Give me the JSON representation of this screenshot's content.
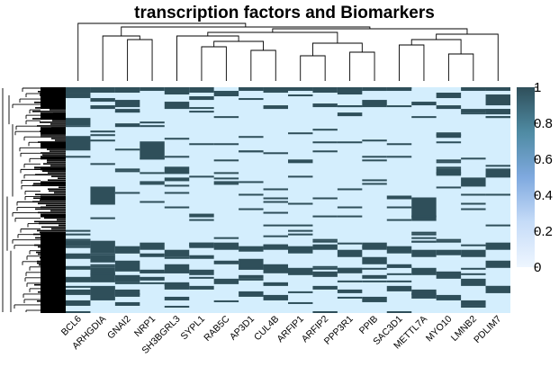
{
  "chart_data": {
    "type": "heatmap",
    "title": "transcription factors and Biomarkers",
    "xlabel": "",
    "ylabel": "",
    "columns": [
      "BCL6",
      "ARHGDIA",
      "GNAI2",
      "NRP1",
      "SH3BGRL3",
      "SYPL1",
      "RAB5C",
      "AP3D1",
      "CUL4B",
      "ARFIP1",
      "ARFIP2",
      "PPP3R1",
      "PPIB",
      "SAC3D1",
      "METTL7A",
      "MYO10",
      "LMNB2",
      "PDLIM7"
    ],
    "value_range": [
      0,
      1
    ],
    "colorbar": {
      "ticks": [
        0,
        0.2,
        0.4,
        0.6,
        0.8,
        1
      ],
      "tick_labels": [
        "0",
        "0.2",
        "0.4",
        "0.6",
        "0.8",
        "1"
      ],
      "colors": {
        "low": "#d4eefd",
        "mid": "#5b9ad6",
        "high": "#2f4f5a"
      }
    },
    "row_count": 125,
    "row_dendrogram": true,
    "column_dendrogram": true,
    "background_color": "#d4eefd",
    "high_color": "#2f4f5a"
  }
}
